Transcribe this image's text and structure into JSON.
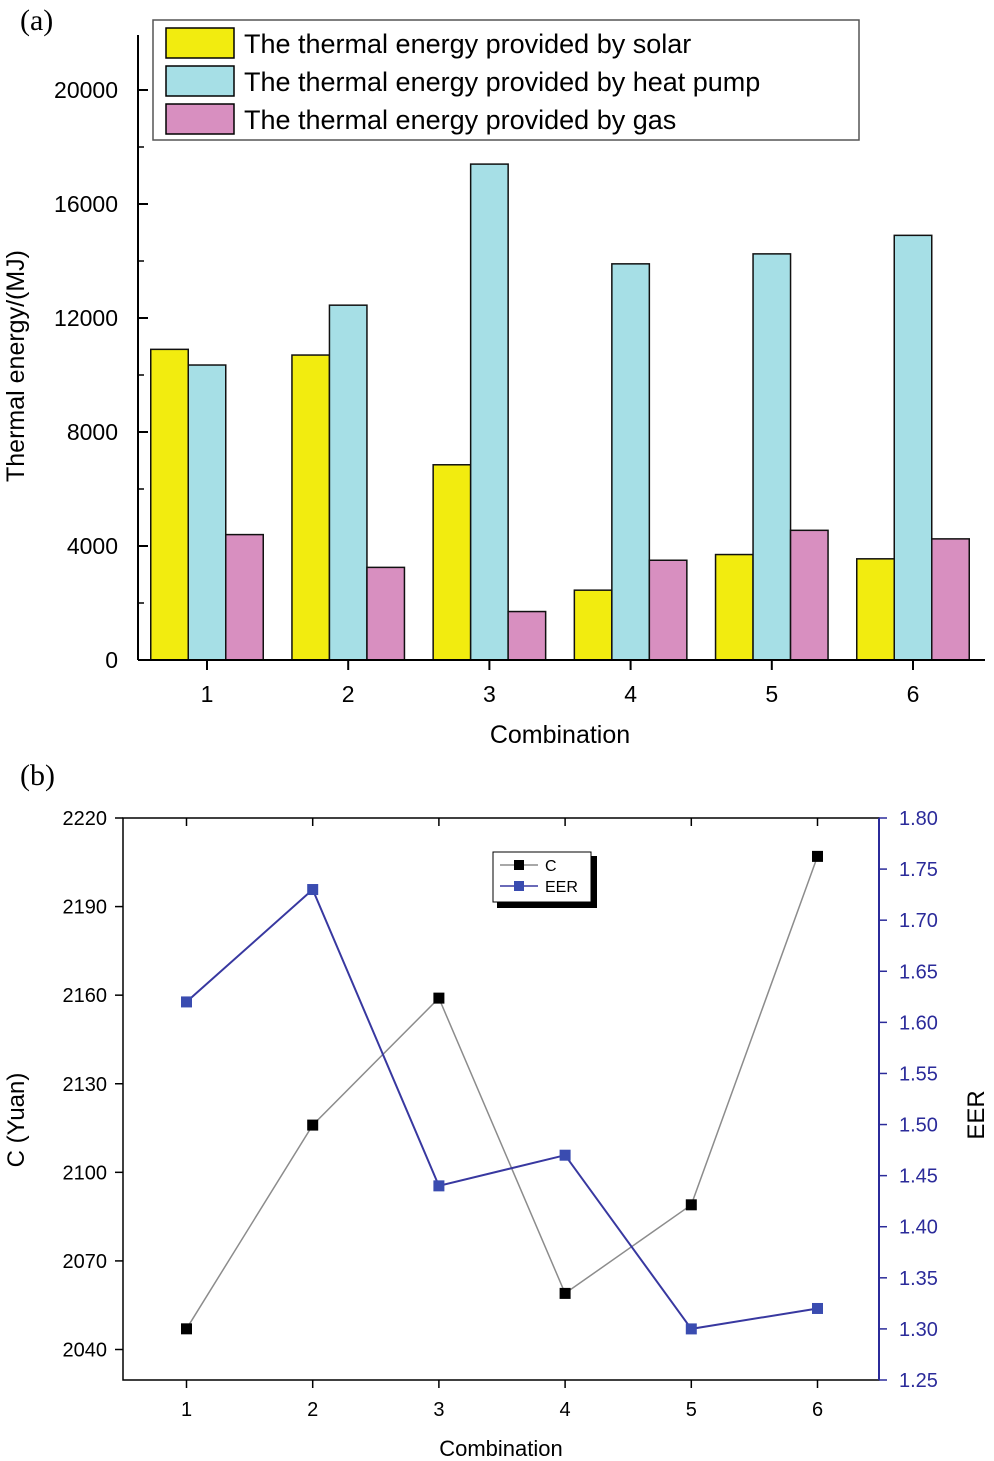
{
  "chart_data": [
    {
      "panel_label": "(a)",
      "type": "bar",
      "xlabel": "Combination",
      "ylabel": "Thermal energy/(MJ)",
      "categories": [
        "1",
        "2",
        "3",
        "4",
        "5",
        "6"
      ],
      "ylim": [
        0,
        22000
      ],
      "yticks": [
        0,
        4000,
        8000,
        12000,
        16000,
        20000
      ],
      "series": [
        {
          "name": "The thermal energy provided by solar",
          "color": "#f2ec0f",
          "values": [
            10900,
            10700,
            6850,
            2450,
            3700,
            3550
          ]
        },
        {
          "name": "The thermal energy provided by heat pump",
          "color": "#a6dfe6",
          "values": [
            10350,
            12450,
            17400,
            13900,
            14250,
            14900
          ]
        },
        {
          "name": "The thermal energy provided by gas",
          "color": "#d88fc0",
          "values": [
            4400,
            3250,
            1700,
            3500,
            4550,
            4250
          ]
        }
      ],
      "legend_position": "top"
    },
    {
      "panel_label": "(b)",
      "type": "line",
      "xlabel": "Combination",
      "ylabel": "C (Yuan)",
      "y2label": "EER",
      "x": [
        1,
        2,
        3,
        4,
        5,
        6
      ],
      "ylim": [
        2030,
        2220
      ],
      "yticks": [
        2040,
        2070,
        2100,
        2130,
        2160,
        2190,
        2220
      ],
      "y2lim": [
        1.25,
        1.8
      ],
      "y2ticks": [
        "1.25",
        "1.30",
        "1.35",
        "1.40",
        "1.45",
        "1.50",
        "1.55",
        "1.60",
        "1.65",
        "1.70",
        "1.75",
        "1.80"
      ],
      "series": [
        {
          "name": "C",
          "axis": "left",
          "color": "#8c8c8c",
          "marker_color": "#000000",
          "values": [
            2047,
            2116,
            2159,
            2059,
            2089,
            2207
          ]
        },
        {
          "name": "EER",
          "axis": "right",
          "color": "#3838a0",
          "marker_color": "#3a4cb0",
          "values": [
            1.62,
            1.73,
            1.44,
            1.47,
            1.3,
            1.32
          ]
        }
      ],
      "legend_position": "top-center"
    }
  ]
}
